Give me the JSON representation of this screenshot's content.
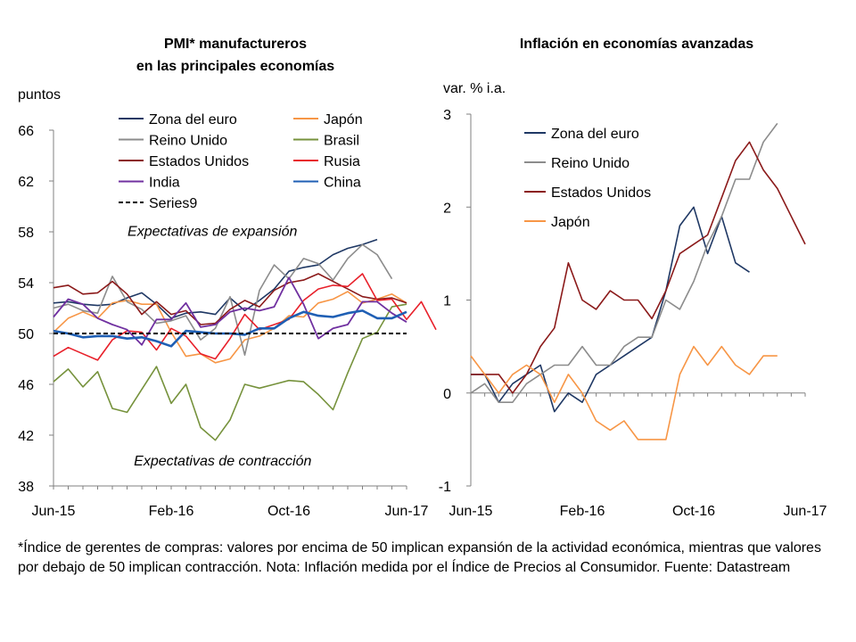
{
  "chart_data": [
    {
      "type": "line",
      "title_line1": "PMI* manufactureros",
      "title_line2": "en las principales economías",
      "ylabel": "puntos",
      "ylim": [
        38,
        66
      ],
      "yticks": [
        38,
        42,
        46,
        50,
        54,
        58,
        62,
        66
      ],
      "xtick_labels": [
        {
          "i": 0,
          "label": "Jun-15"
        },
        {
          "i": 8,
          "label": "Feb-16"
        },
        {
          "i": 16,
          "label": "Oct-16"
        },
        {
          "i": 24,
          "label": "Jun-17"
        }
      ],
      "annotations": [
        {
          "text": "Expectativas de expansión",
          "x": 10.8,
          "y": 57.7
        },
        {
          "text": "Expectativas de contracción",
          "x": 11.5,
          "y": 39.6
        }
      ],
      "series": [
        {
          "name": "Zona del euro",
          "color": "#1f3864",
          "width": 1.6,
          "values": [
            52.4,
            52.5,
            52.3,
            52.2,
            52.3,
            52.8,
            53.2,
            52.3,
            51.2,
            51.6,
            51.7,
            51.5,
            52.8,
            51.8,
            52.6,
            53.5,
            54.9,
            55.2,
            55.4,
            56.2,
            56.7,
            57,
            57.4
          ]
        },
        {
          "name": "Japón",
          "color": "#f79646",
          "width": 1.6,
          "values": [
            50.1,
            51.2,
            51.7,
            51.2,
            52.4,
            52.6,
            52.3,
            52.3,
            50.1,
            48.2,
            48.4,
            47.7,
            48,
            49.5,
            49.8,
            50.4,
            51.4,
            51.3,
            52.4,
            52.7,
            53.3,
            52.4,
            52.7,
            53.1,
            52.4
          ]
        },
        {
          "name": "Reino Unido",
          "color": "#8c8c8c",
          "width": 1.6,
          "values": [
            52,
            52.3,
            51.8,
            51.6,
            54.5,
            52.5,
            51.9,
            50.8,
            51,
            51.4,
            49.5,
            50.4,
            52.9,
            48.3,
            53.4,
            55.4,
            54.3,
            55.9,
            55.5,
            54.2,
            55.9,
            57,
            56.2,
            54.3
          ]
        },
        {
          "name": "Brasil",
          "color": "#76923c",
          "width": 1.6,
          "values": [
            46.2,
            47.2,
            45.8,
            47,
            44.1,
            43.8,
            45.6,
            47.4,
            44.5,
            46,
            42.6,
            41.6,
            43.2,
            46,
            45.7,
            46,
            46.3,
            46.2,
            45.2,
            44,
            46.9,
            49.6,
            50.1,
            52.1,
            52.3
          ]
        },
        {
          "name": "Estados Unidos",
          "color": "#8b1a1a",
          "width": 1.6,
          "values": [
            53.6,
            53.8,
            53.1,
            53.2,
            54.1,
            53.1,
            51.5,
            52.5,
            51.5,
            51.8,
            50.7,
            50.8,
            51.9,
            52.6,
            52.1,
            53.4,
            54,
            54.2,
            54.7,
            54.1,
            53.5,
            52.9,
            52.7,
            52.8,
            52.4
          ]
        },
        {
          "name": "Rusia",
          "color": "#e8202a",
          "width": 1.6,
          "values": [
            48.2,
            48.9,
            48.4,
            47.9,
            49.5,
            50.2,
            50.1,
            48.7,
            50.4,
            49.8,
            48.4,
            48,
            49.6,
            51.5,
            50.3,
            50.7,
            51.1,
            52.6,
            53.5,
            53.8,
            53.7,
            54.7,
            52.6,
            52.7,
            51.1,
            52.5,
            50.3
          ]
        },
        {
          "name": "India",
          "color": "#7030a0",
          "width": 1.8,
          "values": [
            51.3,
            52.7,
            52.3,
            51.2,
            50.7,
            50.3,
            49.1,
            51.1,
            51.1,
            52.4,
            50.5,
            50.7,
            51.7,
            52,
            51.8,
            52.1,
            54.4,
            52.3,
            49.6,
            50.4,
            50.7,
            52.5,
            52.5,
            51.6,
            50.9
          ]
        },
        {
          "name": "China",
          "color": "#1f5fb4",
          "width": 2.6,
          "values": [
            50.2,
            50,
            49.7,
            49.8,
            49.8,
            49.6,
            49.7,
            49.4,
            49,
            50.2,
            50.1,
            50,
            50,
            49.9,
            50.4,
            50.4,
            51.2,
            51.7,
            51.4,
            51.3,
            51.6,
            51.8,
            51.2,
            51.2,
            51.7
          ]
        },
        {
          "name": "Series9",
          "color": "#000000",
          "width": 2,
          "dashed": true,
          "constant": 50
        }
      ]
    },
    {
      "type": "line",
      "title": "Inflación en economías avanzadas",
      "ylabel": "var. % i.a.",
      "ylim": [
        -1,
        3
      ],
      "yticks": [
        -1,
        0,
        1,
        2,
        3
      ],
      "xtick_labels": [
        {
          "i": 0,
          "label": "Jun-15"
        },
        {
          "i": 8,
          "label": "Feb-16"
        },
        {
          "i": 16,
          "label": "Oct-16"
        },
        {
          "i": 24,
          "label": "Jun-17"
        }
      ],
      "series": [
        {
          "name": "Zona del euro",
          "color": "#1f3864",
          "width": 1.6,
          "values": [
            0.2,
            0.2,
            -0.1,
            0.1,
            0.2,
            0.3,
            -0.2,
            0,
            -0.1,
            0.2,
            0.3,
            0.4,
            0.5,
            0.6,
            1.1,
            1.8,
            2,
            1.5,
            1.9,
            1.4,
            1.3
          ]
        },
        {
          "name": "Reino Unido",
          "color": "#8c8c8c",
          "width": 1.6,
          "values": [
            0,
            0.1,
            -0.1,
            -0.1,
            0.1,
            0.2,
            0.3,
            0.3,
            0.5,
            0.3,
            0.3,
            0.5,
            0.6,
            0.6,
            1,
            0.9,
            1.2,
            1.6,
            1.9,
            2.3,
            2.3,
            2.7,
            2.9
          ]
        },
        {
          "name": "Estados Unidos",
          "color": "#8b1a1a",
          "width": 1.6,
          "values": [
            0.2,
            0.2,
            0.2,
            0,
            0.2,
            0.5,
            0.7,
            1.4,
            1,
            0.9,
            1.1,
            1,
            1,
            0.8,
            1.1,
            1.5,
            1.6,
            1.7,
            2.1,
            2.5,
            2.7,
            2.4,
            2.2,
            1.9,
            1.6
          ]
        },
        {
          "name": "Japón",
          "color": "#f79646",
          "width": 1.6,
          "values": [
            0.4,
            0.2,
            0,
            0.2,
            0.3,
            0.2,
            -0.1,
            0.2,
            0,
            -0.3,
            -0.4,
            -0.3,
            -0.5,
            -0.5,
            -0.5,
            0.2,
            0.5,
            0.3,
            0.5,
            0.3,
            0.2,
            0.4,
            0.4
          ]
        }
      ]
    }
  ],
  "footnote": "*Índice de gerentes de compras: valores por encima de 50 implican expansión de la actividad económica, mientras que valores por debajo de 50 implican contracción. Nota: Inflación medida por el Índice de Precios al Consumidor. Fuente: Datastream"
}
